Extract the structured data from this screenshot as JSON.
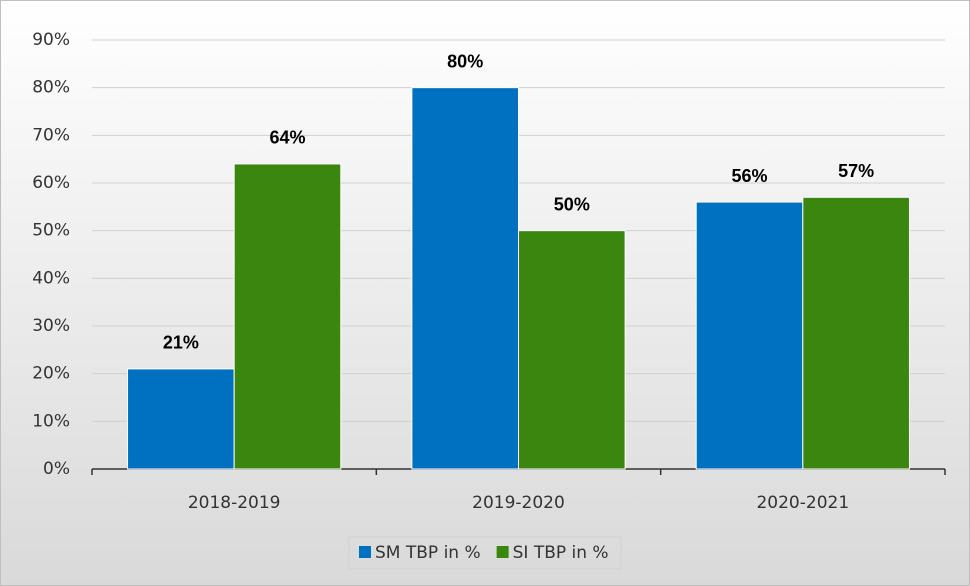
{
  "chart_data": {
    "type": "bar",
    "categories": [
      "2018-2019",
      "2019-2020",
      "2020-2021"
    ],
    "series": [
      {
        "name": "SM TBP in %",
        "color": "#0070c0",
        "values": [
          21,
          80,
          56
        ],
        "value_labels": [
          "21%",
          "80%",
          "56%"
        ]
      },
      {
        "name": "SI TBP in %",
        "color": "#3a860f",
        "values": [
          64,
          50,
          57
        ],
        "value_labels": [
          "64%",
          "50%",
          "57%"
        ]
      }
    ],
    "ylim": [
      0,
      90
    ],
    "yticks": [
      {
        "value": 0,
        "label": "0%"
      },
      {
        "value": 10,
        "label": "10%"
      },
      {
        "value": 20,
        "label": "20%"
      },
      {
        "value": 30,
        "label": "30%"
      },
      {
        "value": 40,
        "label": "40%"
      },
      {
        "value": 50,
        "label": "50%"
      },
      {
        "value": 60,
        "label": "60%"
      },
      {
        "value": 70,
        "label": "70%"
      },
      {
        "value": 80,
        "label": "80%"
      },
      {
        "value": 90,
        "label": "90%"
      }
    ],
    "grid": true,
    "legend": "bottom"
  }
}
